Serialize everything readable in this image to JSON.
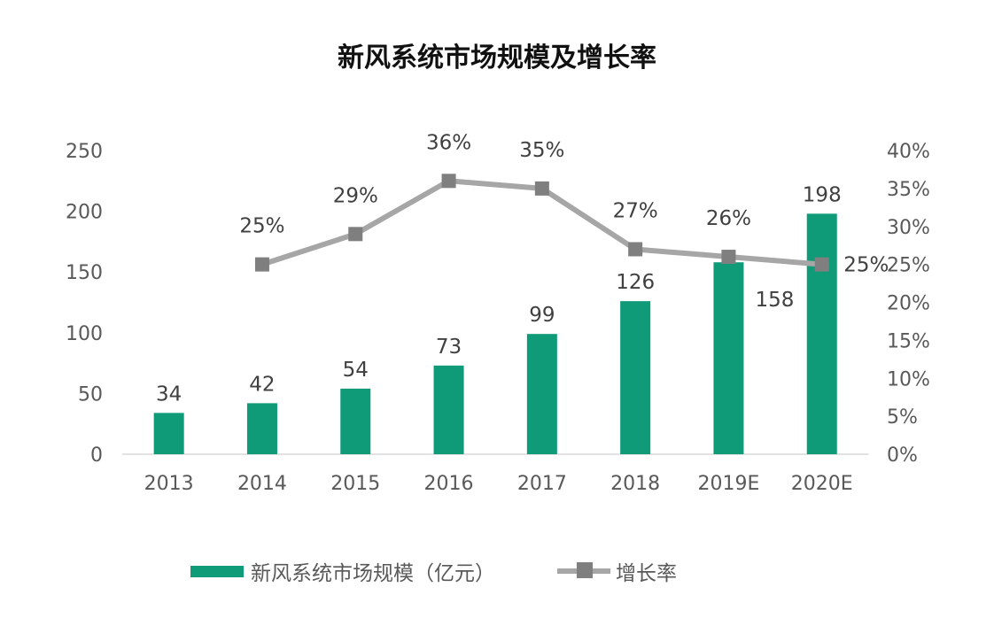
{
  "chart_data": {
    "type": "bar+line",
    "title": "新风系统市场规模及增长率",
    "categories": [
      "2013",
      "2014",
      "2015",
      "2016",
      "2017",
      "2018",
      "2019E",
      "2020E"
    ],
    "series": [
      {
        "name": "新风系统市场规模（亿元）",
        "type": "bar",
        "axis": "left",
        "color": "#0f9a78",
        "values": [
          34,
          42,
          54,
          73,
          99,
          126,
          158,
          198
        ],
        "labels": [
          "34",
          "42",
          "54",
          "73",
          "99",
          "126",
          "158",
          "198"
        ]
      },
      {
        "name": "增长率",
        "type": "line",
        "axis": "right",
        "color": "#a6a6a6",
        "marker_color": "#7f7f7f",
        "values": [
          null,
          25,
          29,
          36,
          35,
          27,
          26,
          25
        ],
        "labels": [
          "",
          "25%",
          "29%",
          "36%",
          "35%",
          "27%",
          "26%",
          "25%"
        ]
      }
    ],
    "y_left": {
      "range": [
        0,
        250
      ],
      "ticks": [
        "0",
        "50",
        "100",
        "150",
        "200",
        "250"
      ]
    },
    "y_right": {
      "range": [
        0,
        40
      ],
      "ticks": [
        "0%",
        "5%",
        "10%",
        "15%",
        "20%",
        "25%",
        "30%",
        "35%",
        "40%"
      ]
    },
    "grid": false,
    "legend_position": "bottom"
  }
}
